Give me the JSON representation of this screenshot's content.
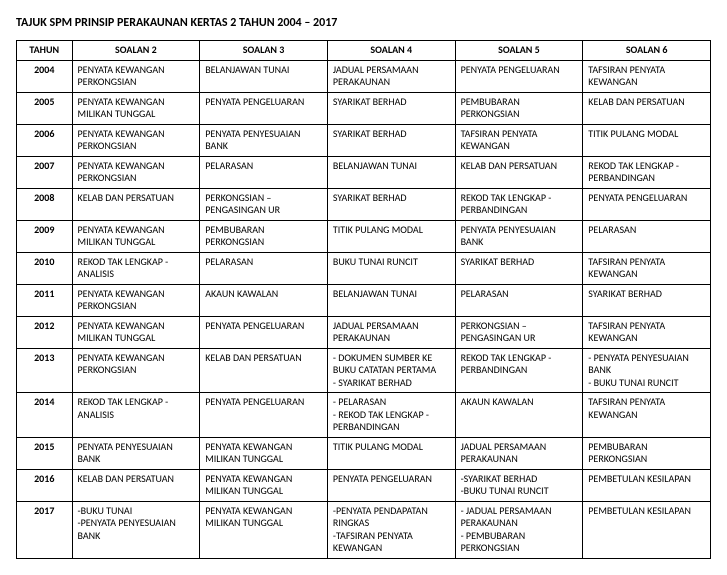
{
  "title": "TAJUK SPM PRINSIP PERAKAUNAN KERTAS 2 TAHUN 2004 – 2017",
  "columns": [
    "TAHUN",
    "SOALAN 2",
    "SOALAN 3",
    "SOALAN 4",
    "SOALAN 5",
    "SOALAN 6"
  ],
  "rows": [
    {
      "year": "2004",
      "q2": [
        "PENYATA KEWANGAN PERKONGSIAN"
      ],
      "q3": [
        "BELANJAWAN TUNAI"
      ],
      "q4": [
        "JADUAL PERSAMAAN PERAKAUNAN"
      ],
      "q5": [
        "PENYATA PENGELUARAN"
      ],
      "q6": [
        "TAFSIRAN PENYATA KEWANGAN"
      ]
    },
    {
      "year": "2005",
      "q2": [
        "PENYATA KEWANGAN MILIKAN TUNGGAL"
      ],
      "q3": [
        "PENYATA PENGELUARAN"
      ],
      "q4": [
        "SYARIKAT BERHAD"
      ],
      "q5": [
        "PEMBUBARAN PERKONGSIAN"
      ],
      "q6": [
        "KELAB DAN PERSATUAN"
      ]
    },
    {
      "year": "2006",
      "q2": [
        "PENYATA KEWANGAN PERKONGSIAN"
      ],
      "q3": [
        "PENYATA PENYESUAIAN BANK"
      ],
      "q4": [
        "SYARIKAT BERHAD"
      ],
      "q5": [
        "TAFSIRAN PENYATA KEWANGAN"
      ],
      "q6": [
        "TITIK PULANG MODAL"
      ]
    },
    {
      "year": "2007",
      "q2": [
        "PENYATA KEWANGAN PERKONGSIAN"
      ],
      "q3": [
        "PELARASAN"
      ],
      "q4": [
        "BELANJAWAN TUNAI"
      ],
      "q5": [
        "KELAB DAN PERSATUAN"
      ],
      "q6": [
        "REKOD TAK LENGKAP - PERBANDINGAN"
      ]
    },
    {
      "year": "2008",
      "q2": [
        "KELAB DAN PERSATUAN"
      ],
      "q3": [
        "PERKONGSIAN – PENGASINGAN UR"
      ],
      "q4": [
        "SYARIKAT BERHAD"
      ],
      "q5": [
        "REKOD TAK LENGKAP - PERBANDINGAN"
      ],
      "q6": [
        "PENYATA PENGELUARAN"
      ]
    },
    {
      "year": "2009",
      "q2": [
        "PENYATA KEWANGAN MILIKAN TUNGGAL"
      ],
      "q3": [
        "PEMBUBARAN PERKONGSIAN"
      ],
      "q4": [
        "TITIK PULANG MODAL"
      ],
      "q5": [
        "PENYATA PENYESUAIAN BANK"
      ],
      "q6": [
        "PELARASAN"
      ]
    },
    {
      "year": "2010",
      "q2": [
        "REKOD TAK LENGKAP - ANALISIS"
      ],
      "q3": [
        "PELARASAN"
      ],
      "q4": [
        "BUKU TUNAI RUNCIT"
      ],
      "q5": [
        "SYARIKAT BERHAD"
      ],
      "q6": [
        "TAFSIRAN PENYATA KEWANGAN"
      ]
    },
    {
      "year": "2011",
      "q2": [
        "PENYATA KEWANGAN PERKONGSIAN"
      ],
      "q3": [
        "AKAUN KAWALAN"
      ],
      "q4": [
        "BELANJAWAN TUNAI"
      ],
      "q5": [
        "PELARASAN"
      ],
      "q6": [
        "SYARIKAT BERHAD"
      ]
    },
    {
      "year": "2012",
      "q2": [
        "PENYATA KEWANGAN MILIKAN TUNGGAL"
      ],
      "q3": [
        "PENYATA PENGELUARAN"
      ],
      "q4": [
        "JADUAL PERSAMAAN PERAKAUNAN"
      ],
      "q5": [
        "PERKONGSIAN – PENGASINGAN UR"
      ],
      "q6": [
        "TAFSIRAN PENYATA KEWANGAN"
      ]
    },
    {
      "year": "2013",
      "q2": [
        "PENYATA KEWANGAN PERKONGSIAN"
      ],
      "q3": [
        "KELAB DAN PERSATUAN"
      ],
      "q4": [
        "- DOKUMEN SUMBER KE BUKU CATATAN PERTAMA",
        "- SYARIKAT BERHAD"
      ],
      "q5": [
        "REKOD TAK LENGKAP - PERBANDINGAN"
      ],
      "q6": [
        "- PENYATA PENYESUAIAN BANK",
        "- BUKU TUNAI RUNCIT"
      ]
    },
    {
      "year": "2014",
      "q2": [
        "REKOD TAK LENGKAP - ANALISIS"
      ],
      "q3": [
        "PENYATA PENGELUARAN"
      ],
      "q4": [
        "- PELARASAN",
        "- REKOD TAK LENGKAP - PERBANDINGAN"
      ],
      "q5": [
        "AKAUN KAWALAN"
      ],
      "q6": [
        "TAFSIRAN PENYATA KEWANGAN"
      ]
    },
    {
      "year": "2015",
      "q2": [
        "PENYATA PENYESUAIAN BANK"
      ],
      "q3": [
        "PENYATA KEWANGAN MILIKAN TUNGGAL"
      ],
      "q4": [
        "TITIK PULANG MODAL"
      ],
      "q5": [
        "JADUAL PERSAMAAN PERAKAUNAN"
      ],
      "q6": [
        "PEMBUBARAN PERKONGSIAN"
      ]
    },
    {
      "year": "2016",
      "q2": [
        "KELAB DAN PERSATUAN"
      ],
      "q3": [
        "PENYATA KEWANGAN MILIKAN TUNGGAL"
      ],
      "q4": [
        "PENYATA PENGELUARAN"
      ],
      "q5": [
        "-SYARIKAT BERHAD",
        "-BUKU TUNAI RUNCIT"
      ],
      "q6": [
        "PEMBETULAN KESILAPAN"
      ]
    },
    {
      "year": "2017",
      "q2": [
        "-BUKU TUNAI",
        "-PENYATA PENYESUAIAN BANK"
      ],
      "q3": [
        "PENYATA KEWANGAN MILIKAN TUNGGAL"
      ],
      "q4": [
        "-PENYATA PENDAPATAN RINGKAS",
        "-TAFSIRAN PENYATA KEWANGAN"
      ],
      "q5": [
        "- JADUAL PERSAMAAN PERAKAUNAN",
        "- PEMBUBARAN PERKONGSIAN"
      ],
      "q6": [
        "PEMBETULAN KESILAPAN"
      ]
    }
  ]
}
